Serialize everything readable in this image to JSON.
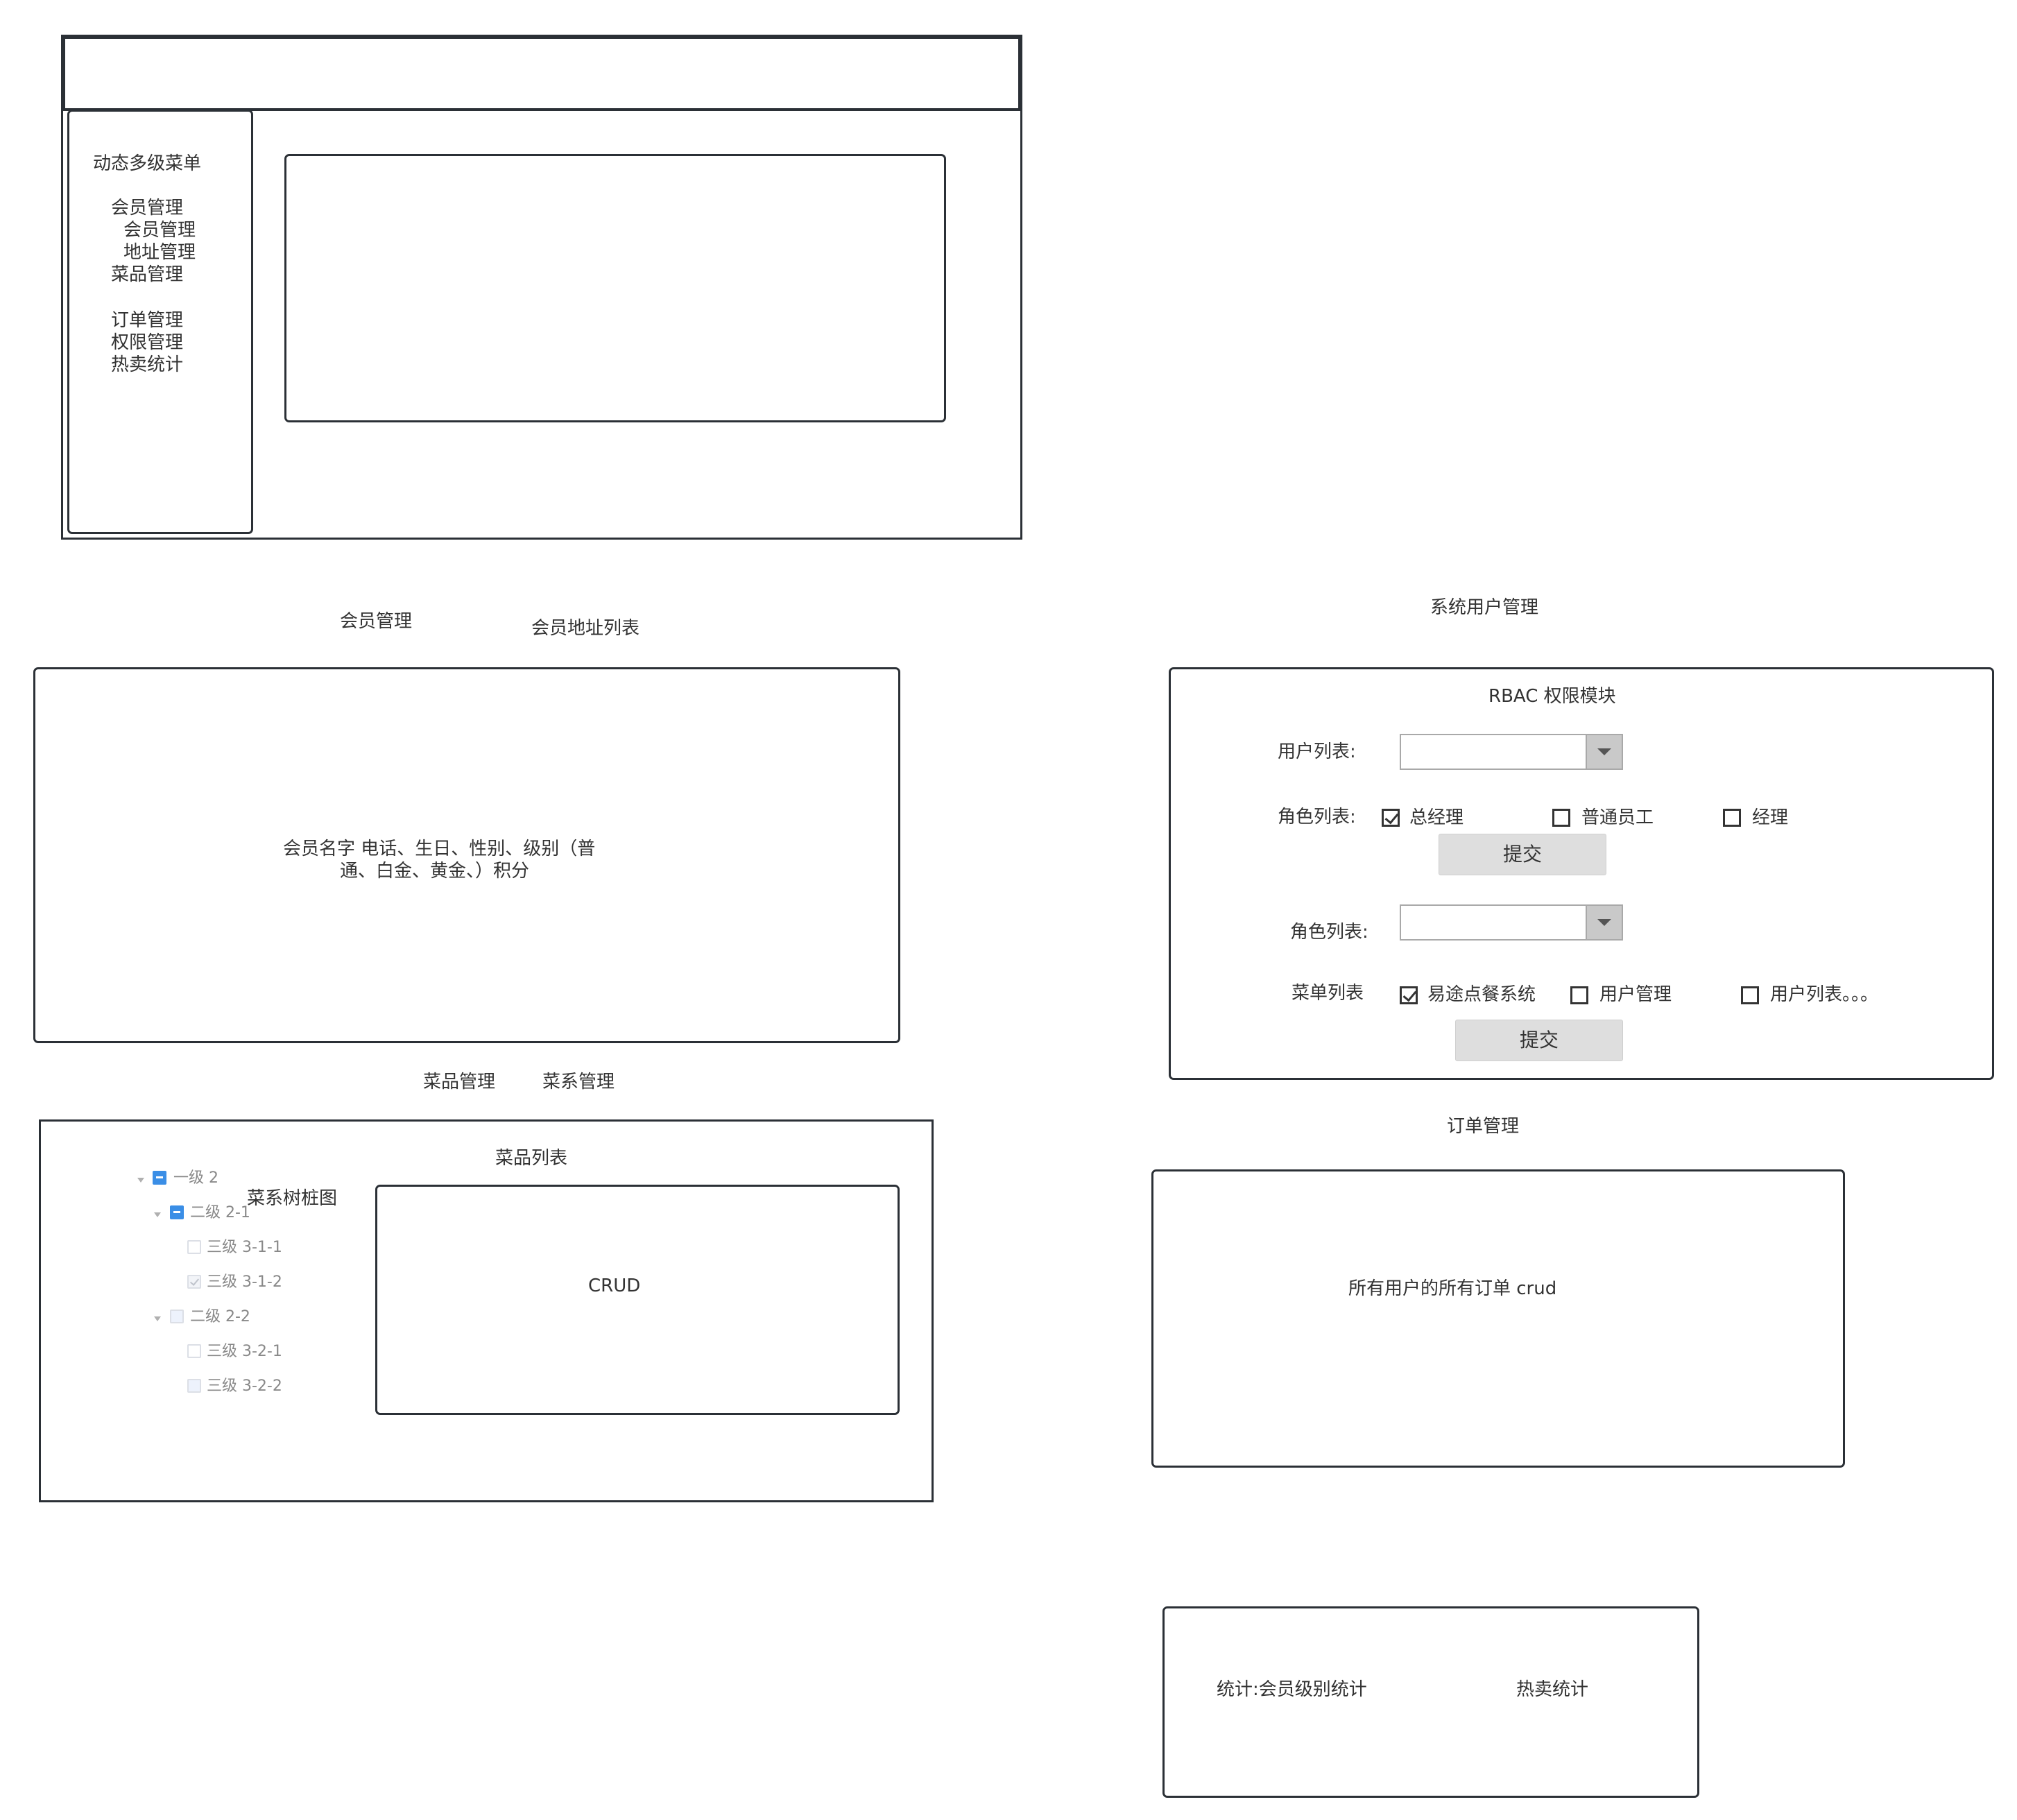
{
  "layout_sketch": {
    "sidebar_menu": {
      "title": "动态多级菜单",
      "items": [
        "会员管理",
        "会员管理",
        "地址管理",
        "菜品管理",
        "订单管理",
        "权限管理",
        "热卖统计"
      ]
    }
  },
  "member_section": {
    "tab1": "会员管理",
    "tab2": "会员地址列表",
    "description_line1": "会员名字 电话、生日、性别、级别（普",
    "description_line2": "通、白金、黄金、）积分"
  },
  "dish_section": {
    "tab1": "菜品管理",
    "tab2": "菜系管理",
    "list_title": "菜品列表",
    "tree_title": "菜系树桩图",
    "crud_label": "CRUD",
    "tree": {
      "level1": "一级 2",
      "level2_1": "二级 2-1",
      "level3_1_1": "三级 3-1-1",
      "level3_1_2": "三级 3-1-2",
      "level2_2": "二级 2-2",
      "level3_2_1": "三级 3-2-1",
      "level3_2_2": "三级 3-2-2"
    }
  },
  "rbac_section": {
    "section_title": "系统用户管理",
    "module_title": "RBAC 权限模块",
    "user_list_label": "用户列表:",
    "role_list_label": "角色列表:",
    "roles": [
      {
        "label": "总经理",
        "checked": true
      },
      {
        "label": "普通员工",
        "checked": false
      },
      {
        "label": "经理",
        "checked": false
      }
    ],
    "submit1": "提交",
    "role_select_label": "角色列表:",
    "menu_list_label": "菜单列表",
    "menus": [
      {
        "label": "易途点餐系统",
        "checked": true
      },
      {
        "label": "用户管理",
        "checked": false
      },
      {
        "label": "用户列表。。。",
        "checked": false
      }
    ],
    "submit2": "提交"
  },
  "order_section": {
    "title": "订单管理",
    "description": "所有用户的所有订单 crud"
  },
  "stats_section": {
    "member_level_stats": "统计:会员级别统计",
    "hot_sales_stats": "热卖统计"
  },
  "colors": {
    "border": "#2b3036",
    "text": "#333333",
    "tree_checked": "#3a8ee6",
    "button_bg": "#dedede",
    "dropdown_button": "#c9c9c9"
  }
}
